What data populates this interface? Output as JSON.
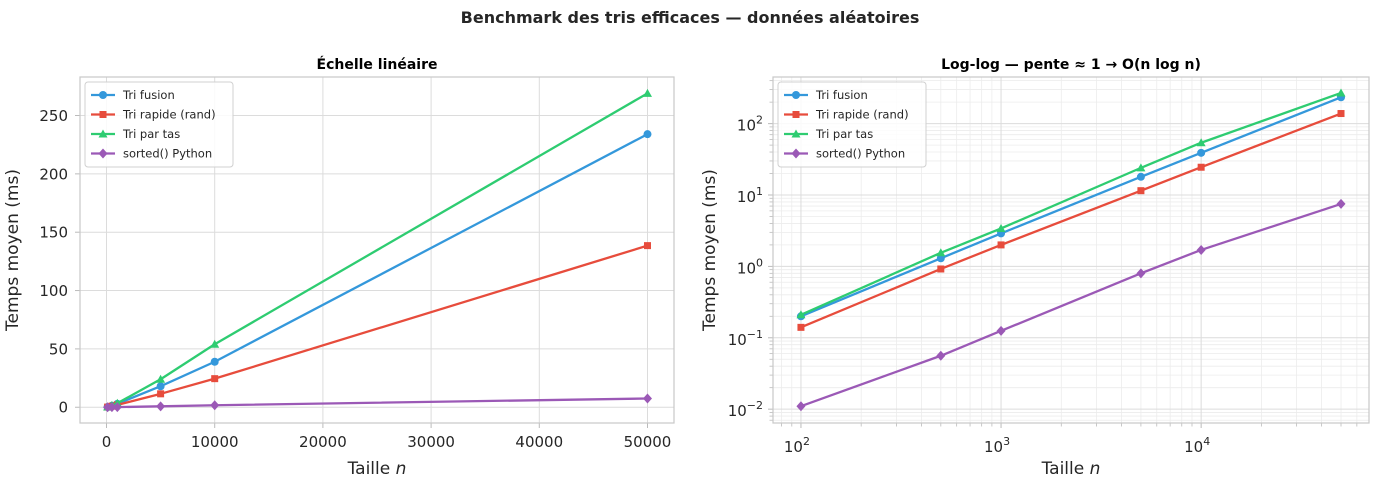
{
  "suptitle": "Benchmark des tris efficaces — données aléatoires",
  "chart_data": [
    {
      "type": "line",
      "title": "Échelle linéaire",
      "xlabel": "Taille n",
      "ylabel": "Temps moyen (ms)",
      "xscale": "linear",
      "yscale": "linear",
      "xlim": [
        -2450,
        52450
      ],
      "ylim": [
        -13.5,
        283
      ],
      "xticks": [
        0,
        10000,
        20000,
        30000,
        40000,
        50000
      ],
      "xtick_labels": [
        "0",
        "10000",
        "20000",
        "30000",
        "40000",
        "50000"
      ],
      "yticks": [
        0,
        50,
        100,
        150,
        200,
        250
      ],
      "ytick_labels": [
        "0",
        "50",
        "100",
        "150",
        "200",
        "250"
      ],
      "grid": true,
      "legend": "upper left",
      "x": [
        100,
        500,
        1000,
        5000,
        10000,
        50000
      ],
      "series": [
        {
          "name": "Tri fusion",
          "color": "#3498db",
          "marker": "circle",
          "values": [
            0.2,
            1.3,
            2.9,
            18.0,
            39.0,
            234.0
          ]
        },
        {
          "name": "Tri rapide (rand)",
          "color": "#e74c3c",
          "marker": "square",
          "values": [
            0.14,
            0.92,
            2.0,
            11.5,
            24.5,
            138.5
          ]
        },
        {
          "name": "Tri par tas",
          "color": "#2ecc71",
          "marker": "triangle",
          "values": [
            0.21,
            1.55,
            3.4,
            24.0,
            54.0,
            269.0
          ]
        },
        {
          "name": "sorted() Python",
          "color": "#9b59b6",
          "marker": "diamond",
          "values": [
            0.011,
            0.056,
            0.125,
            0.8,
            1.7,
            7.5
          ]
        }
      ]
    },
    {
      "type": "line",
      "title": "Log-log — pente ≈ 1 → O(n log n)",
      "xlabel": "Taille n",
      "ylabel": "Temps moyen (ms)",
      "xscale": "log",
      "yscale": "log",
      "xlim": [
        72.5,
        69000
      ],
      "ylim": [
        0.0064,
        450
      ],
      "xticks": [
        100,
        1000,
        10000
      ],
      "xtick_labels": [
        [
          "10",
          "2"
        ],
        [
          "10",
          "3"
        ],
        [
          "10",
          "4"
        ]
      ],
      "yticks": [
        0.01,
        0.1,
        1,
        10,
        100
      ],
      "ytick_labels": [
        [
          "10",
          "−2"
        ],
        [
          "10",
          "−1"
        ],
        [
          "10",
          "0"
        ],
        [
          "10",
          "1"
        ],
        [
          "10",
          "2"
        ]
      ],
      "grid": true,
      "legend": "upper left",
      "x": [
        100,
        500,
        1000,
        5000,
        10000,
        50000
      ],
      "series": [
        {
          "name": "Tri fusion",
          "color": "#3498db",
          "marker": "circle",
          "values": [
            0.2,
            1.3,
            2.9,
            18.0,
            39.0,
            234.0
          ]
        },
        {
          "name": "Tri rapide (rand)",
          "color": "#e74c3c",
          "marker": "square",
          "values": [
            0.14,
            0.92,
            2.0,
            11.5,
            24.5,
            138.5
          ]
        },
        {
          "name": "Tri par tas",
          "color": "#2ecc71",
          "marker": "triangle",
          "values": [
            0.21,
            1.55,
            3.4,
            24.0,
            54.0,
            269.0
          ]
        },
        {
          "name": "sorted() Python",
          "color": "#9b59b6",
          "marker": "diamond",
          "values": [
            0.011,
            0.056,
            0.125,
            0.8,
            1.7,
            7.5
          ]
        }
      ]
    }
  ]
}
